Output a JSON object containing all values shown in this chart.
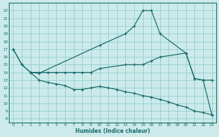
{
  "xlabel": "Humidex (Indice chaleur)",
  "bg_color": "#cceaea",
  "grid_color": "#88c8c8",
  "line_color": "#1a6b6b",
  "xlim": [
    -0.5,
    23.5
  ],
  "ylim": [
    7.5,
    23.0
  ],
  "xticks": [
    0,
    1,
    2,
    3,
    4,
    5,
    6,
    7,
    8,
    9,
    10,
    11,
    12,
    13,
    14,
    15,
    16,
    17,
    18,
    19,
    20,
    21,
    22,
    23
  ],
  "yticks": [
    8,
    9,
    10,
    11,
    12,
    13,
    14,
    15,
    16,
    17,
    18,
    19,
    20,
    21,
    22
  ],
  "line1_x": [
    0,
    1,
    2,
    3,
    4,
    5,
    6,
    7,
    8,
    9,
    10,
    13,
    14,
    15,
    16,
    17,
    20,
    21,
    22,
    23
  ],
  "line1_y": [
    17.0,
    15.0,
    14.0,
    14.0,
    14.0,
    14.0,
    14.0,
    14.0,
    14.0,
    14.0,
    14.5,
    15.0,
    15.0,
    15.0,
    15.5,
    16.0,
    16.5,
    13.2,
    13.0,
    13.0
  ],
  "line2_x": [
    0,
    1,
    2,
    3,
    10,
    13,
    14,
    15,
    16,
    17,
    20,
    21,
    22,
    23
  ],
  "line2_y": [
    17.0,
    15.0,
    14.0,
    13.9,
    17.5,
    19.0,
    20.0,
    22.0,
    22.0,
    19.0,
    16.5,
    13.2,
    13.0,
    8.5
  ],
  "line3_x": [
    2,
    3,
    4,
    5,
    6,
    7,
    8,
    9,
    10,
    11,
    12,
    13,
    14,
    15,
    16,
    17,
    18,
    19,
    20,
    21,
    22,
    23
  ],
  "line3_y": [
    14.0,
    13.0,
    12.7,
    12.5,
    12.3,
    11.8,
    11.8,
    12.0,
    12.2,
    12.0,
    11.8,
    11.5,
    11.3,
    11.0,
    10.8,
    10.5,
    10.2,
    9.8,
    9.5,
    9.0,
    8.8,
    8.5
  ]
}
